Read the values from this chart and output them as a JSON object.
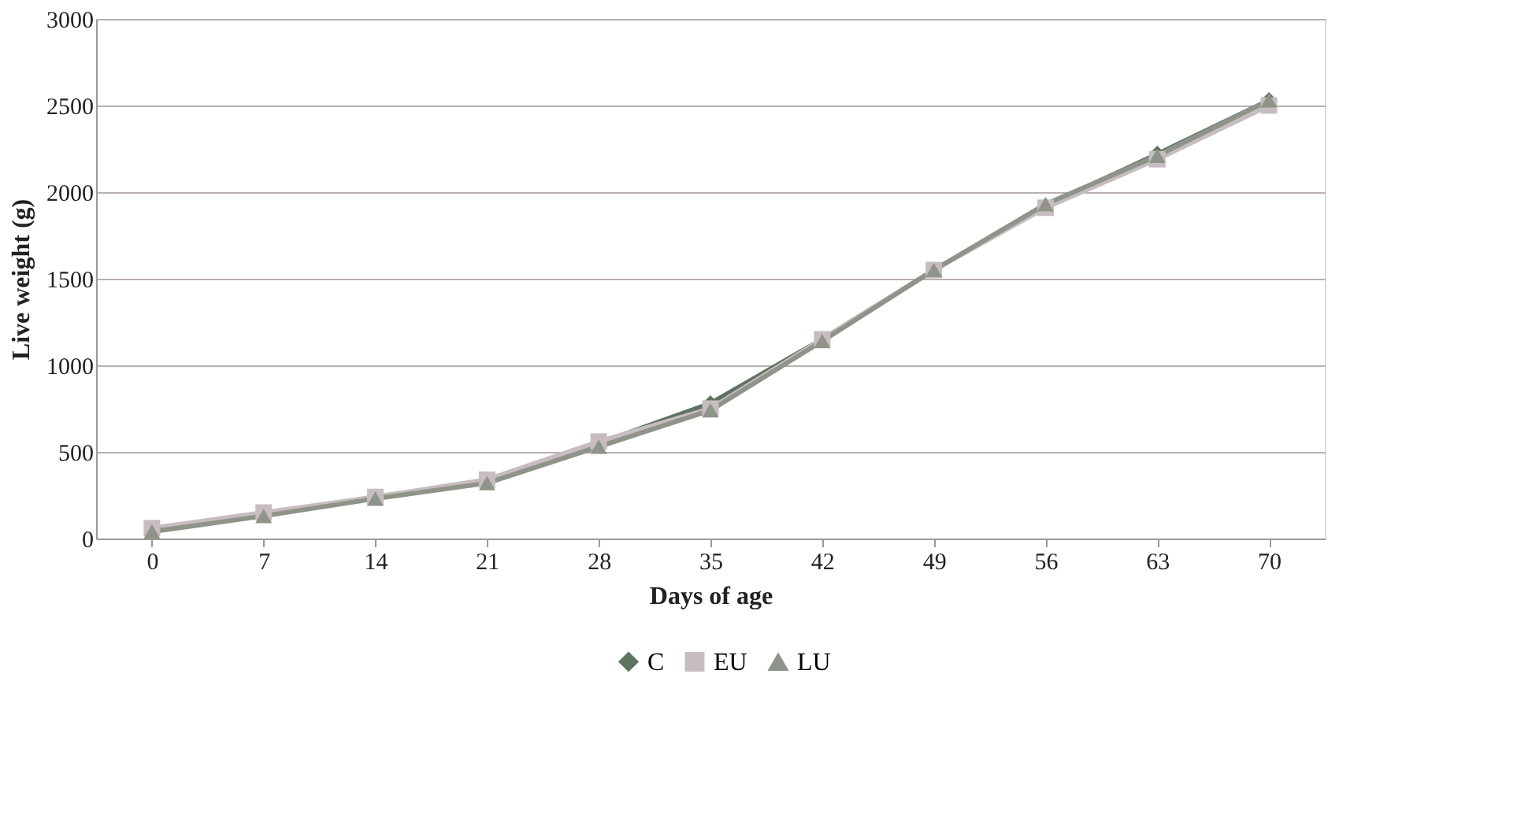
{
  "chart_data": {
    "type": "line",
    "xlabel": "Days of age",
    "ylabel": "Live weight (g)",
    "categories": [
      "0",
      "7",
      "14",
      "21",
      "28",
      "35",
      "42",
      "49",
      "56",
      "63",
      "70"
    ],
    "series": [
      {
        "name": "C",
        "color": "#5e7460",
        "marker": "diamond",
        "values": [
          50,
          140,
          240,
          330,
          550,
          780,
          1150,
          1550,
          1920,
          2220,
          2530
        ]
      },
      {
        "name": "EU",
        "color": "#c7bcbf",
        "marker": "square",
        "values": [
          60,
          150,
          240,
          340,
          560,
          750,
          1150,
          1550,
          1910,
          2190,
          2500
        ]
      },
      {
        "name": "LU",
        "color": "#8e9488",
        "marker": "triangle",
        "values": [
          40,
          130,
          230,
          320,
          530,
          740,
          1140,
          1550,
          1930,
          2210,
          2530
        ]
      }
    ],
    "ylim": [
      0,
      3000
    ],
    "yticks": [
      0,
      500,
      1000,
      1500,
      2000,
      2500,
      3000
    ],
    "grid": "y",
    "legend": "bottom",
    "line_style": "solid"
  }
}
